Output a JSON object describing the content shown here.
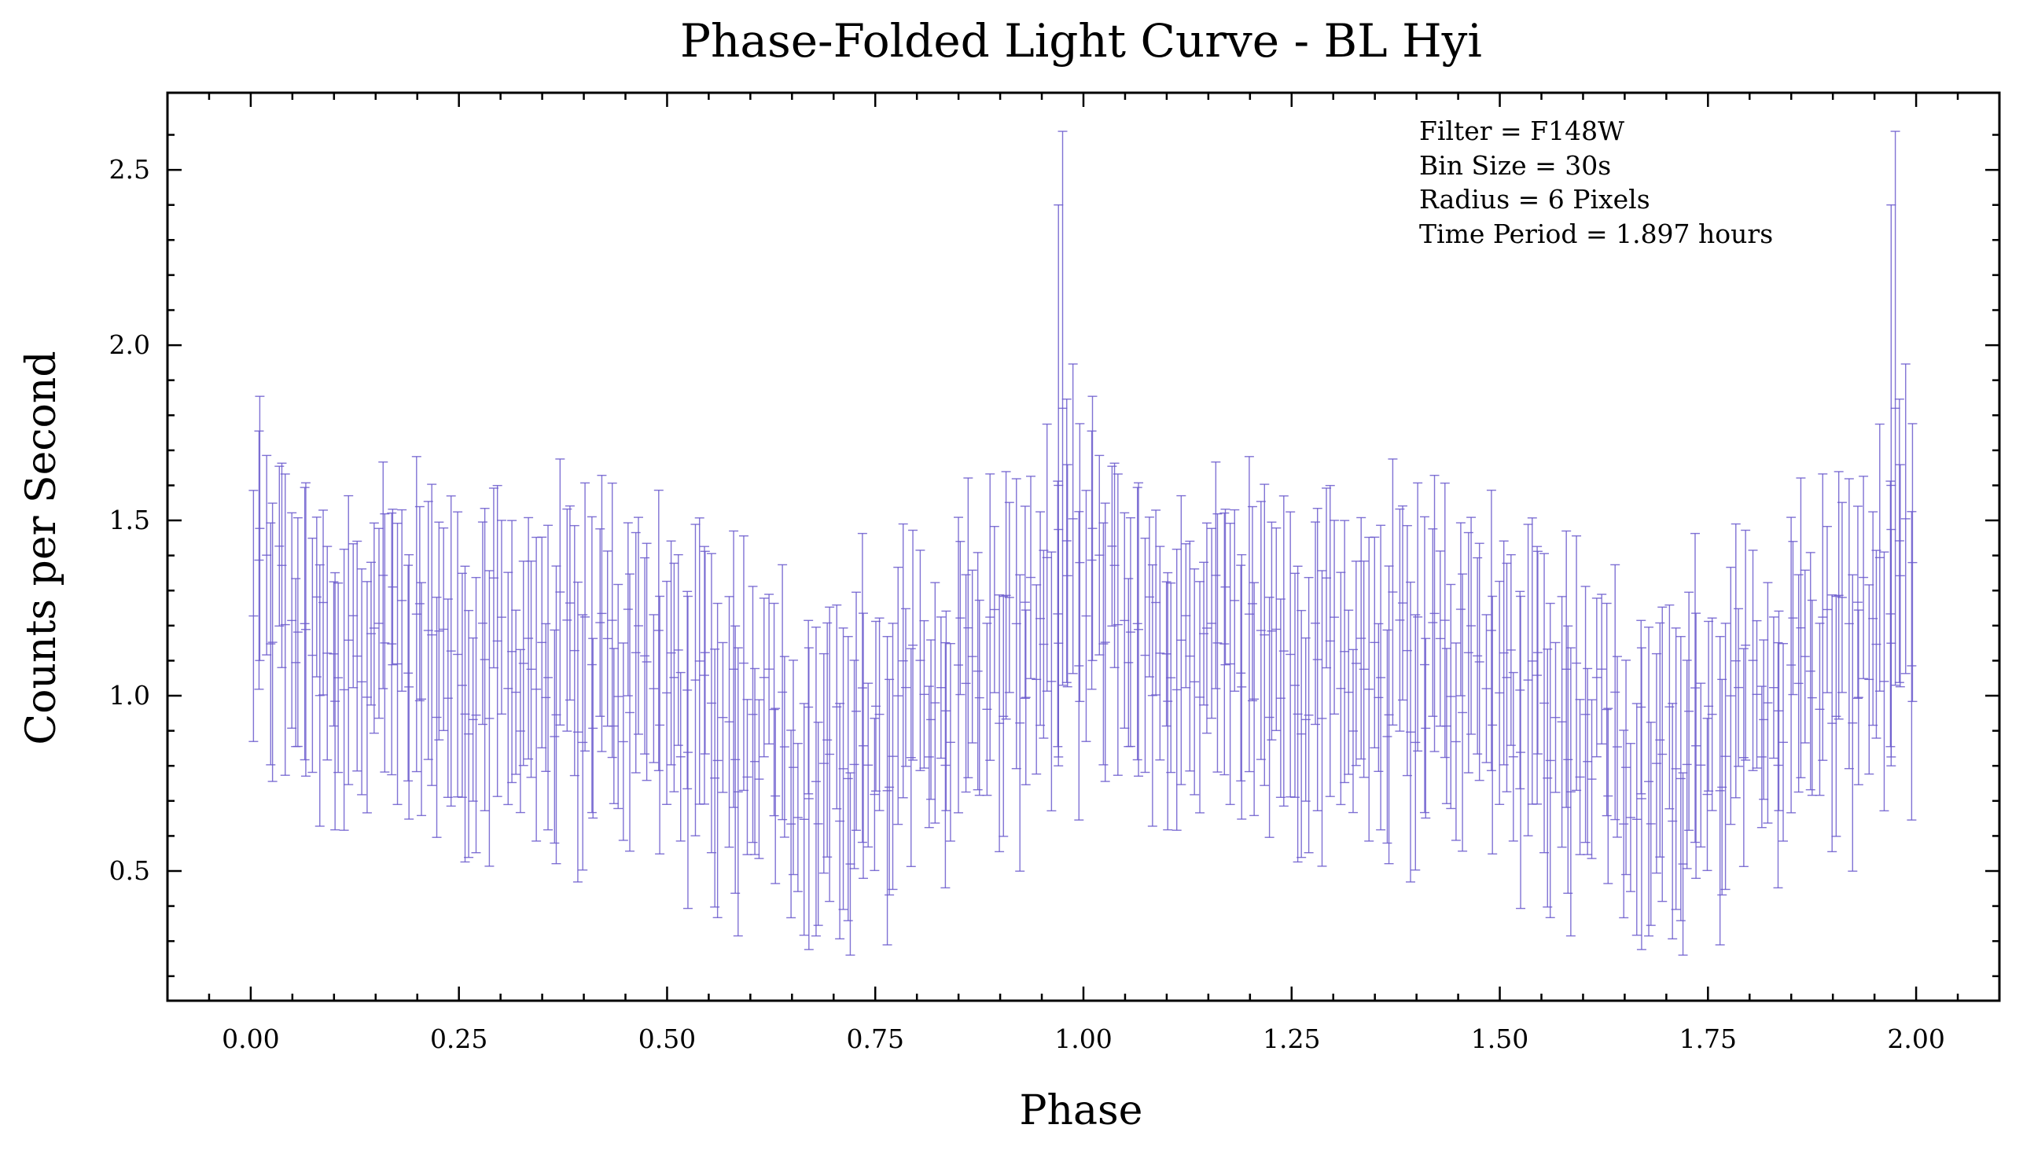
{
  "chart_data": {
    "type": "scatter",
    "title": "Phase-Folded Light Curve - BL Hyi",
    "xlabel": "Phase",
    "ylabel": "Counts per Second",
    "xlim": [
      -0.1,
      2.1
    ],
    "ylim": [
      0.13,
      2.72
    ],
    "xticks": [
      "0.00",
      "0.25",
      "0.50",
      "0.75",
      "1.00",
      "1.25",
      "1.50",
      "1.75",
      "2.00"
    ],
    "yticks": [
      "0.5",
      "1.0",
      "1.5",
      "2.0",
      "2.5"
    ],
    "grid": false,
    "legend": "none",
    "annotations": [
      "Filter = F148W",
      "Bin Size = 30s",
      "Radius = 6 Pixels",
      "Time Period = 1.897 hours"
    ],
    "series": [
      {
        "style": "errorbar",
        "color": "#6a5acd",
        "phase_period": 1.0,
        "repeat_cycles": 2,
        "points_per_cycle": 200,
        "error_range": [
          0.2,
          0.45
        ],
        "max_upper_bound": 2.61,
        "min_lower_bound": 0.26,
        "profile": {
          "phase": [
            0.0,
            0.05,
            0.1,
            0.2,
            0.3,
            0.4,
            0.5,
            0.6,
            0.65,
            0.7,
            0.75,
            0.8,
            0.85,
            0.9,
            0.95,
            1.0
          ],
          "mean_counts": [
            1.32,
            1.25,
            1.15,
            1.1,
            1.12,
            1.08,
            1.05,
            0.92,
            0.85,
            0.8,
            0.82,
            0.95,
            1.05,
            1.1,
            1.18,
            1.32
          ]
        }
      }
    ]
  }
}
